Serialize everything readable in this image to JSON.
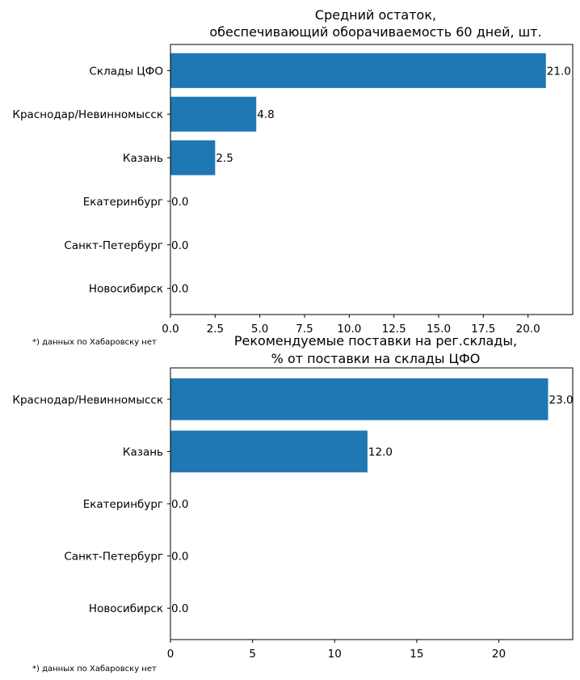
{
  "chart_data": [
    {
      "type": "bar",
      "orientation": "horizontal",
      "title_lines": [
        "Средний остаток,",
        "обеспечивающий оборачиваемость 60 дней, шт."
      ],
      "categories": [
        "Склады ЦФО",
        "Краснодар/Невинномысск",
        "Казань",
        "Екатеринбург",
        "Санкт-Петербург",
        "Новосибирск"
      ],
      "values": [
        21.0,
        4.8,
        2.5,
        0.0,
        0.0,
        0.0
      ],
      "value_labels": [
        "21.0",
        "4.8",
        "2.5",
        "0.0",
        "0.0",
        "0.0"
      ],
      "xlim": [
        0,
        22.5
      ],
      "xticks": [
        0,
        2.5,
        5,
        7.5,
        10,
        12.5,
        15,
        17.5,
        20
      ],
      "xtick_labels": [
        "0.0",
        "2.5",
        "5.0",
        "7.5",
        "10.0",
        "12.5",
        "15.0",
        "17.5",
        "20.0"
      ],
      "bar_color": "#1f77b4",
      "footnote": "*) данных по Хабаровску нет"
    },
    {
      "type": "bar",
      "orientation": "horizontal",
      "title_lines": [
        "Рекомендуемые поставки на рег.склады,",
        "% от поставки на склады ЦФО"
      ],
      "categories": [
        "Краснодар/Невинномысск",
        "Казань",
        "Екатеринбург",
        "Санкт-Петербург",
        "Новосибирск"
      ],
      "values": [
        23.0,
        12.0,
        0.0,
        0.0,
        0.0
      ],
      "value_labels": [
        "23.0",
        "12.0",
        "0.0",
        "0.0",
        "0.0"
      ],
      "xlim": [
        0,
        24.5
      ],
      "xticks": [
        0,
        5,
        10,
        15,
        20
      ],
      "xtick_labels": [
        "0",
        "5",
        "10",
        "15",
        "20"
      ],
      "bar_color": "#1f77b4",
      "footnote": "*) данных по Хабаровску нет"
    }
  ]
}
